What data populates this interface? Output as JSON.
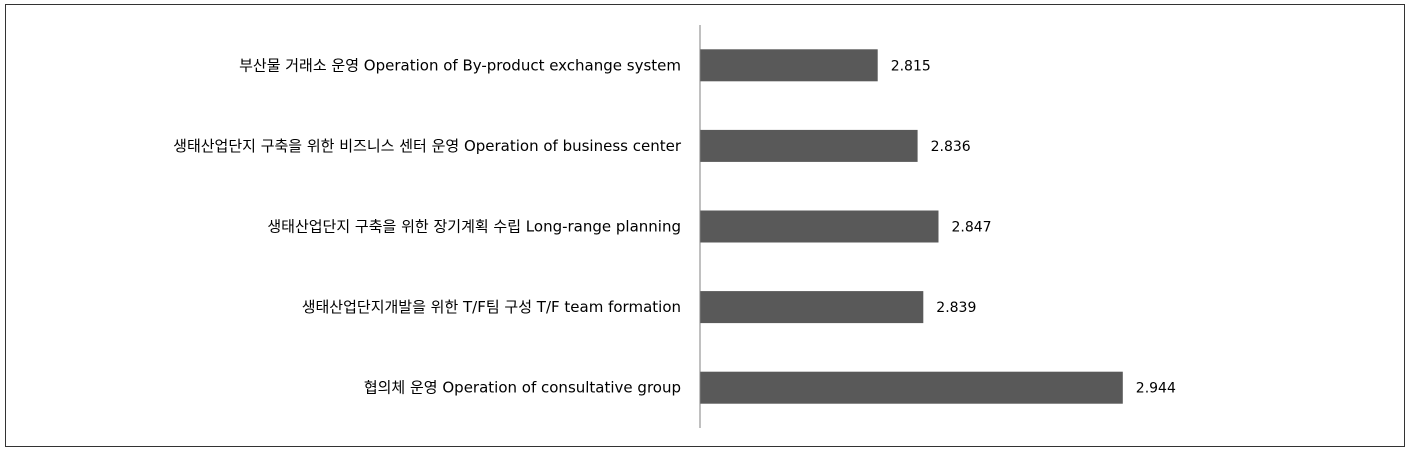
{
  "chart_data": {
    "type": "bar",
    "orientation": "horizontal",
    "title": "",
    "xlabel": "",
    "ylabel": "",
    "grid": false,
    "categories": [
      "부산물 거래소 운영 Operation of By-product exchange system",
      "생태산업단지 구축을 위한 비즈니스 센터 운영 Operation of business center",
      "생태산업단지 구축을 위한 장기계획 수립 Long-range planning",
      "생태산업단지개발을 위한 T/F팀 구성 T/F team formation",
      "협의체 운영 Operation of consultative group"
    ],
    "values": [
      2.815,
      2.836,
      2.847,
      2.839,
      2.944
    ],
    "value_labels": [
      "2.815",
      "2.836",
      "2.847",
      "2.839",
      "2.944"
    ],
    "xlim": [
      2.64,
      3.0
    ],
    "bar_color": "#595959",
    "axis_color": "#808080"
  }
}
